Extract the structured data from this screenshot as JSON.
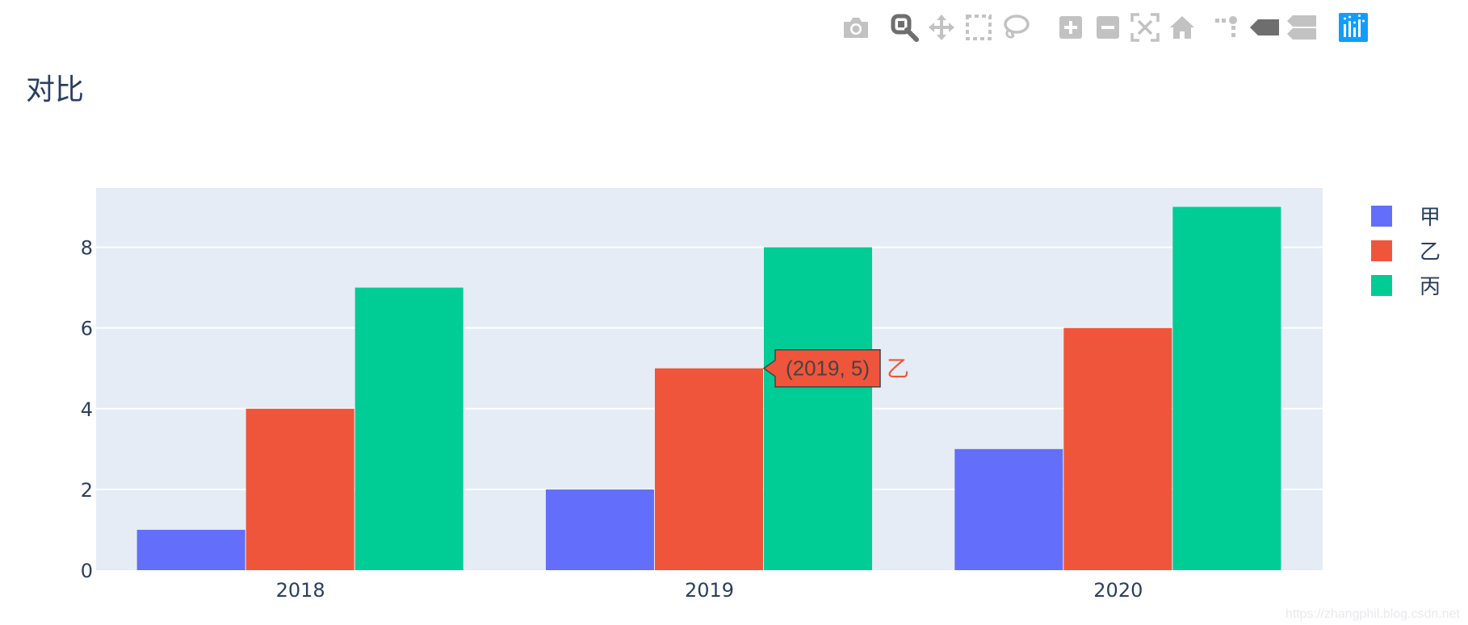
{
  "modebar": {
    "buttons": [
      {
        "name": "camera-icon"
      },
      {
        "name": "zoom-icon"
      },
      {
        "name": "pan-icon"
      },
      {
        "name": "box-select-icon"
      },
      {
        "name": "lasso-select-icon"
      },
      {
        "name": "zoom-in-icon"
      },
      {
        "name": "zoom-out-icon"
      },
      {
        "name": "autoscale-icon"
      },
      {
        "name": "reset-axes-icon"
      },
      {
        "name": "spike-lines-icon"
      },
      {
        "name": "hover-closest-icon"
      },
      {
        "name": "hover-compare-icon"
      },
      {
        "name": "plotly-logo-icon"
      }
    ],
    "icon_color": "#c2c2c2",
    "active_color": "#6e6e6e",
    "logo_color": "#119dff"
  },
  "chart_data": {
    "type": "bar",
    "title": "对比",
    "categories": [
      "2018",
      "2019",
      "2020"
    ],
    "series": [
      {
        "name": "甲",
        "values": [
          1,
          2,
          3
        ],
        "color": "#636efa"
      },
      {
        "name": "乙",
        "values": [
          4,
          5,
          6
        ],
        "color": "#ef553b"
      },
      {
        "name": "丙",
        "values": [
          7,
          8,
          9
        ],
        "color": "#00cc96"
      }
    ],
    "ylim": [
      0,
      9.47
    ],
    "yticks": [
      "0",
      "2",
      "4",
      "6",
      "8"
    ],
    "grid": true,
    "legend": "right",
    "plot_bgcolor": "#e5ecf6",
    "hover": {
      "category": "2019",
      "series": "乙",
      "value": 5,
      "text": "(2019, 5)",
      "label": "乙"
    }
  },
  "watermark": "https://zhangphil.blog.csdn.net"
}
